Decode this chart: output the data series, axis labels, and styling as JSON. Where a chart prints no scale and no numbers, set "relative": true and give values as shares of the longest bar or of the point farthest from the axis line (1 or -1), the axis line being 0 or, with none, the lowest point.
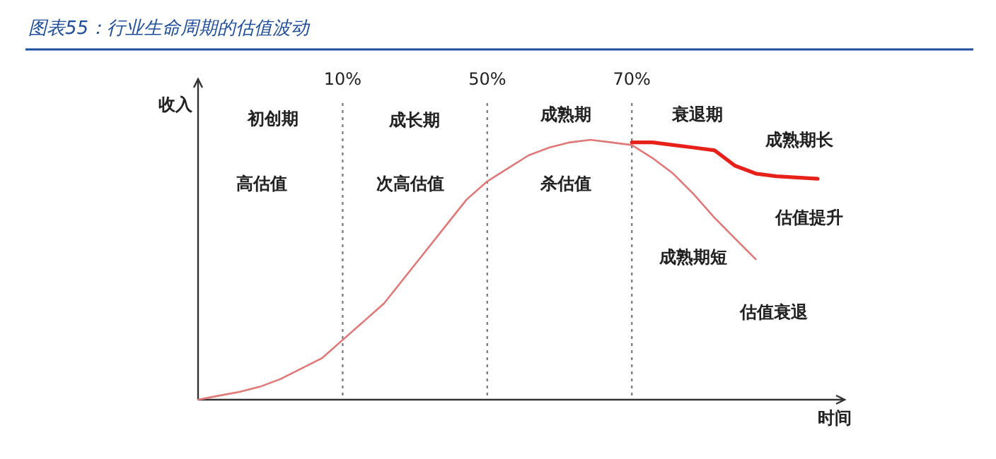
{
  "chart_data": {
    "type": "line",
    "title": "图表55：行业生命周期的估值波动",
    "xlabel": "时间",
    "ylabel": "收入",
    "relative": true,
    "tick_labels": "x",
    "marker": "none",
    "line_style": "solid",
    "categories": [
      null,
      null,
      null,
      null,
      null,
      null,
      null,
      "10%",
      null,
      null,
      null,
      null,
      null,
      null,
      "50%",
      null,
      null,
      null,
      null,
      null,
      null,
      "70%",
      null,
      null,
      null,
      null,
      null,
      null,
      null,
      null,
      null
    ],
    "series": [
      {
        "color": "#e07878",
        "values": [
          0,
          0.015,
          0.03,
          0.05,
          0.08,
          0.12,
          0.16,
          0.23,
          0.3,
          0.37,
          0.47,
          0.57,
          0.67,
          0.77,
          0.84,
          0.89,
          0.94,
          0.97,
          0.99,
          1,
          0.99,
          0.98,
          0.93,
          0.87,
          0.79,
          0.7,
          0.62,
          0.54,
          null,
          null,
          null
        ]
      },
      {
        "color": "#e8201a",
        "values": [
          null,
          null,
          null,
          null,
          null,
          null,
          null,
          null,
          null,
          null,
          null,
          null,
          null,
          null,
          null,
          null,
          null,
          null,
          null,
          null,
          null,
          0.99,
          0.99,
          0.98,
          0.97,
          0.96,
          0.9,
          0.87,
          0.86,
          0.855,
          0.85
        ]
      }
    ],
    "ref_lines": [
      {
        "axis": "x",
        "value": "10%",
        "line_style": "dotted",
        "color": "#808080"
      },
      {
        "axis": "x",
        "value": "50%",
        "line_style": "dotted",
        "color": "#808080"
      },
      {
        "axis": "x",
        "value": "70%",
        "line_style": "dotted",
        "color": "#808080"
      }
    ],
    "annotations": [
      "初创期",
      "高估值",
      "成长期",
      "次高估值",
      "成熟期",
      "杀估值",
      "衰退期",
      "成熟期长",
      "估值提升",
      "成熟期短",
      "估值衰退"
    ]
  }
}
